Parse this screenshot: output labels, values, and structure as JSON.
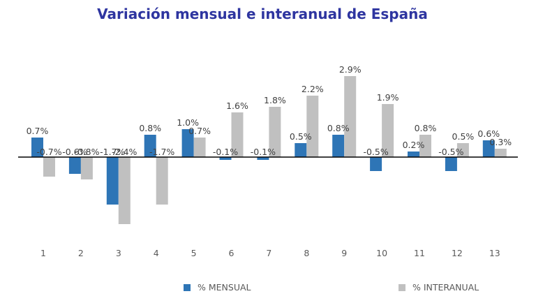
{
  "chart_data": {
    "type": "bar",
    "title": "Variación mensual e interanual de España",
    "categories": [
      "1",
      "2",
      "3",
      "4",
      "5",
      "6",
      "7",
      "8",
      "9",
      "10",
      "11",
      "12",
      "13"
    ],
    "series": [
      {
        "name": "% MENSUAL",
        "color": "#2e75b6",
        "values": [
          0.7,
          -0.6,
          -1.7,
          0.8,
          1.0,
          -0.1,
          -0.1,
          0.5,
          0.8,
          -0.5,
          0.2,
          -0.5,
          0.6
        ],
        "labels": [
          "0.7%",
          "-0.6%",
          "-1.7%",
          "0.8%",
          "1.0%",
          "-0.1%",
          "-0.1%",
          "0.5%",
          "0.8%",
          "-0.5%",
          "0.2%",
          "-0.5%",
          "0.6%"
        ]
      },
      {
        "name": "% INTERANUAL",
        "color": "#c0c0c0",
        "values": [
          -0.7,
          -0.8,
          -2.4,
          -1.7,
          0.7,
          1.6,
          1.8,
          2.2,
          2.9,
          1.9,
          0.8,
          0.5,
          0.3
        ],
        "labels": [
          "-0.7%",
          "-0.8%",
          "-2.4%",
          "-1.7%",
          "0.7%",
          "1.6%",
          "1.8%",
          "2.2%",
          "2.9%",
          "1.9%",
          "0.8%",
          "0.5%",
          "0.3%"
        ]
      }
    ],
    "xlabel": "",
    "ylabel": "",
    "ylim": [
      -2.4,
      2.9
    ],
    "grid": false,
    "legend": "bottom"
  }
}
